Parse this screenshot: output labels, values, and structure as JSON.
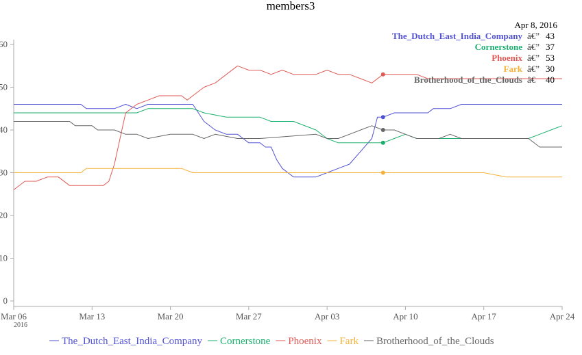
{
  "chart_data": {
    "type": "line",
    "title": "members3",
    "x_labels": [
      "Mar 06",
      "Mar 13",
      "Mar 20",
      "Mar 27",
      "Apr 03",
      "Apr 10",
      "Apr 17",
      "Apr 24"
    ],
    "x_sublabel": "2016",
    "x_range": [
      "2016-03-06",
      "2016-04-24"
    ],
    "y_labels": [
      "0",
      "10",
      "20",
      "30",
      "40",
      "50",
      "60"
    ],
    "y_range": [
      0,
      60
    ],
    "grid": false,
    "legend_position": "bottom",
    "hover": {
      "date": "Apr  8, 2016",
      "separator": "â€”",
      "separator_short": "â€",
      "x": "2016-04-08"
    },
    "series": [
      {
        "name": "The_Dutch_East_India_Company",
        "color": "#5151d3",
        "hover_value": "43",
        "points": [
          [
            "2016-03-06",
            46
          ],
          [
            "2016-03-12",
            46
          ],
          [
            "2016-03-12 12:00",
            45
          ],
          [
            "2016-03-15",
            45
          ],
          [
            "2016-03-16",
            46
          ],
          [
            "2016-03-17",
            45
          ],
          [
            "2016-03-18",
            46
          ],
          [
            "2016-03-22",
            46
          ],
          [
            "2016-03-23",
            42
          ],
          [
            "2016-03-24",
            40
          ],
          [
            "2016-03-25",
            39
          ],
          [
            "2016-03-26",
            39
          ],
          [
            "2016-03-26 12:00",
            38
          ],
          [
            "2016-03-27",
            37
          ],
          [
            "2016-03-28",
            37
          ],
          [
            "2016-03-28 12:00",
            36
          ],
          [
            "2016-03-29",
            36
          ],
          [
            "2016-03-29 12:00",
            33
          ],
          [
            "2016-03-30",
            31
          ],
          [
            "2016-03-31",
            29
          ],
          [
            "2016-04-01",
            29
          ],
          [
            "2016-04-02",
            29
          ],
          [
            "2016-04-03",
            30
          ],
          [
            "2016-04-04",
            31
          ],
          [
            "2016-04-05",
            32
          ],
          [
            "2016-04-06",
            35
          ],
          [
            "2016-04-07",
            38
          ],
          [
            "2016-04-07 12:00",
            43
          ],
          [
            "2016-04-08",
            43
          ],
          [
            "2016-04-09",
            44
          ],
          [
            "2016-04-12",
            44
          ],
          [
            "2016-04-12 12:00",
            45
          ],
          [
            "2016-04-14",
            45
          ],
          [
            "2016-04-15",
            46
          ],
          [
            "2016-04-24",
            46
          ]
        ]
      },
      {
        "name": "Cornerstone",
        "color": "#1aaf6c",
        "hover_value": "37",
        "points": [
          [
            "2016-03-06",
            44
          ],
          [
            "2016-03-17",
            44
          ],
          [
            "2016-03-18",
            45
          ],
          [
            "2016-03-22",
            45
          ],
          [
            "2016-03-23",
            44
          ],
          [
            "2016-03-25",
            43
          ],
          [
            "2016-03-28",
            43
          ],
          [
            "2016-03-29",
            42
          ],
          [
            "2016-03-31",
            42
          ],
          [
            "2016-04-02",
            40
          ],
          [
            "2016-04-03",
            38
          ],
          [
            "2016-04-04",
            37
          ],
          [
            "2016-04-08",
            37
          ],
          [
            "2016-04-09",
            38
          ],
          [
            "2016-04-10",
            39
          ],
          [
            "2016-04-11",
            38
          ],
          [
            "2016-04-21",
            38
          ],
          [
            "2016-04-22",
            39
          ],
          [
            "2016-04-23",
            40
          ],
          [
            "2016-04-24",
            41
          ]
        ]
      },
      {
        "name": "Phoenix",
        "color": "#e05a55",
        "hover_value": "53",
        "points": [
          [
            "2016-03-06",
            26
          ],
          [
            "2016-03-07",
            28
          ],
          [
            "2016-03-08",
            28
          ],
          [
            "2016-03-09",
            29
          ],
          [
            "2016-03-10",
            29
          ],
          [
            "2016-03-11",
            27
          ],
          [
            "2016-03-13",
            27
          ],
          [
            "2016-03-14",
            27
          ],
          [
            "2016-03-14 12:00",
            28
          ],
          [
            "2016-03-15",
            32
          ],
          [
            "2016-03-16",
            44
          ],
          [
            "2016-03-17",
            46
          ],
          [
            "2016-03-18",
            47
          ],
          [
            "2016-03-19",
            48
          ],
          [
            "2016-03-20",
            48
          ],
          [
            "2016-03-21",
            48
          ],
          [
            "2016-03-21 12:00",
            47
          ],
          [
            "2016-03-22",
            48
          ],
          [
            "2016-03-23",
            50
          ],
          [
            "2016-03-24",
            51
          ],
          [
            "2016-03-25",
            53
          ],
          [
            "2016-03-26",
            55
          ],
          [
            "2016-03-27",
            54
          ],
          [
            "2016-03-28",
            54
          ],
          [
            "2016-03-29",
            53
          ],
          [
            "2016-03-30",
            54
          ],
          [
            "2016-03-31",
            53
          ],
          [
            "2016-04-02",
            53
          ],
          [
            "2016-04-03",
            54
          ],
          [
            "2016-04-04",
            53
          ],
          [
            "2016-04-05",
            53
          ],
          [
            "2016-04-06",
            52
          ],
          [
            "2016-04-07",
            51
          ],
          [
            "2016-04-08",
            53
          ],
          [
            "2016-04-11",
            53
          ],
          [
            "2016-04-12",
            52
          ],
          [
            "2016-04-14",
            52
          ],
          [
            "2016-04-17",
            52
          ],
          [
            "2016-04-20",
            52
          ],
          [
            "2016-04-24",
            52
          ]
        ]
      },
      {
        "name": "Fark",
        "color": "#f5b23a",
        "hover_value": "30",
        "points": [
          [
            "2016-03-06",
            30
          ],
          [
            "2016-03-12",
            30
          ],
          [
            "2016-03-12 12:00",
            31
          ],
          [
            "2016-03-21",
            31
          ],
          [
            "2016-03-22",
            30
          ],
          [
            "2016-04-17",
            30
          ],
          [
            "2016-04-19",
            29
          ],
          [
            "2016-04-24",
            29
          ]
        ]
      },
      {
        "name": "Brotherhood_of_the_Clouds",
        "color": "#666666",
        "hover_value": "40",
        "points": [
          [
            "2016-03-06",
            42
          ],
          [
            "2016-03-11",
            42
          ],
          [
            "2016-03-11 12:00",
            41
          ],
          [
            "2016-03-13",
            41
          ],
          [
            "2016-03-13 12:00",
            40
          ],
          [
            "2016-03-15",
            40
          ],
          [
            "2016-03-16",
            39
          ],
          [
            "2016-03-17",
            39
          ],
          [
            "2016-03-18",
            38
          ],
          [
            "2016-03-20",
            39
          ],
          [
            "2016-03-22",
            39
          ],
          [
            "2016-03-23",
            38
          ],
          [
            "2016-03-24",
            39
          ],
          [
            "2016-03-26",
            38
          ],
          [
            "2016-03-28",
            38
          ],
          [
            "2016-04-02",
            39
          ],
          [
            "2016-04-03",
            38
          ],
          [
            "2016-04-04",
            38
          ],
          [
            "2016-04-05",
            39
          ],
          [
            "2016-04-06",
            40
          ],
          [
            "2016-04-07",
            41
          ],
          [
            "2016-04-08",
            40
          ],
          [
            "2016-04-09",
            40
          ],
          [
            "2016-04-10",
            39
          ],
          [
            "2016-04-11",
            38
          ],
          [
            "2016-04-13",
            38
          ],
          [
            "2016-04-14",
            39
          ],
          [
            "2016-04-15",
            38
          ],
          [
            "2016-04-21",
            38
          ],
          [
            "2016-04-22",
            36
          ],
          [
            "2016-04-24",
            36
          ]
        ]
      }
    ]
  }
}
